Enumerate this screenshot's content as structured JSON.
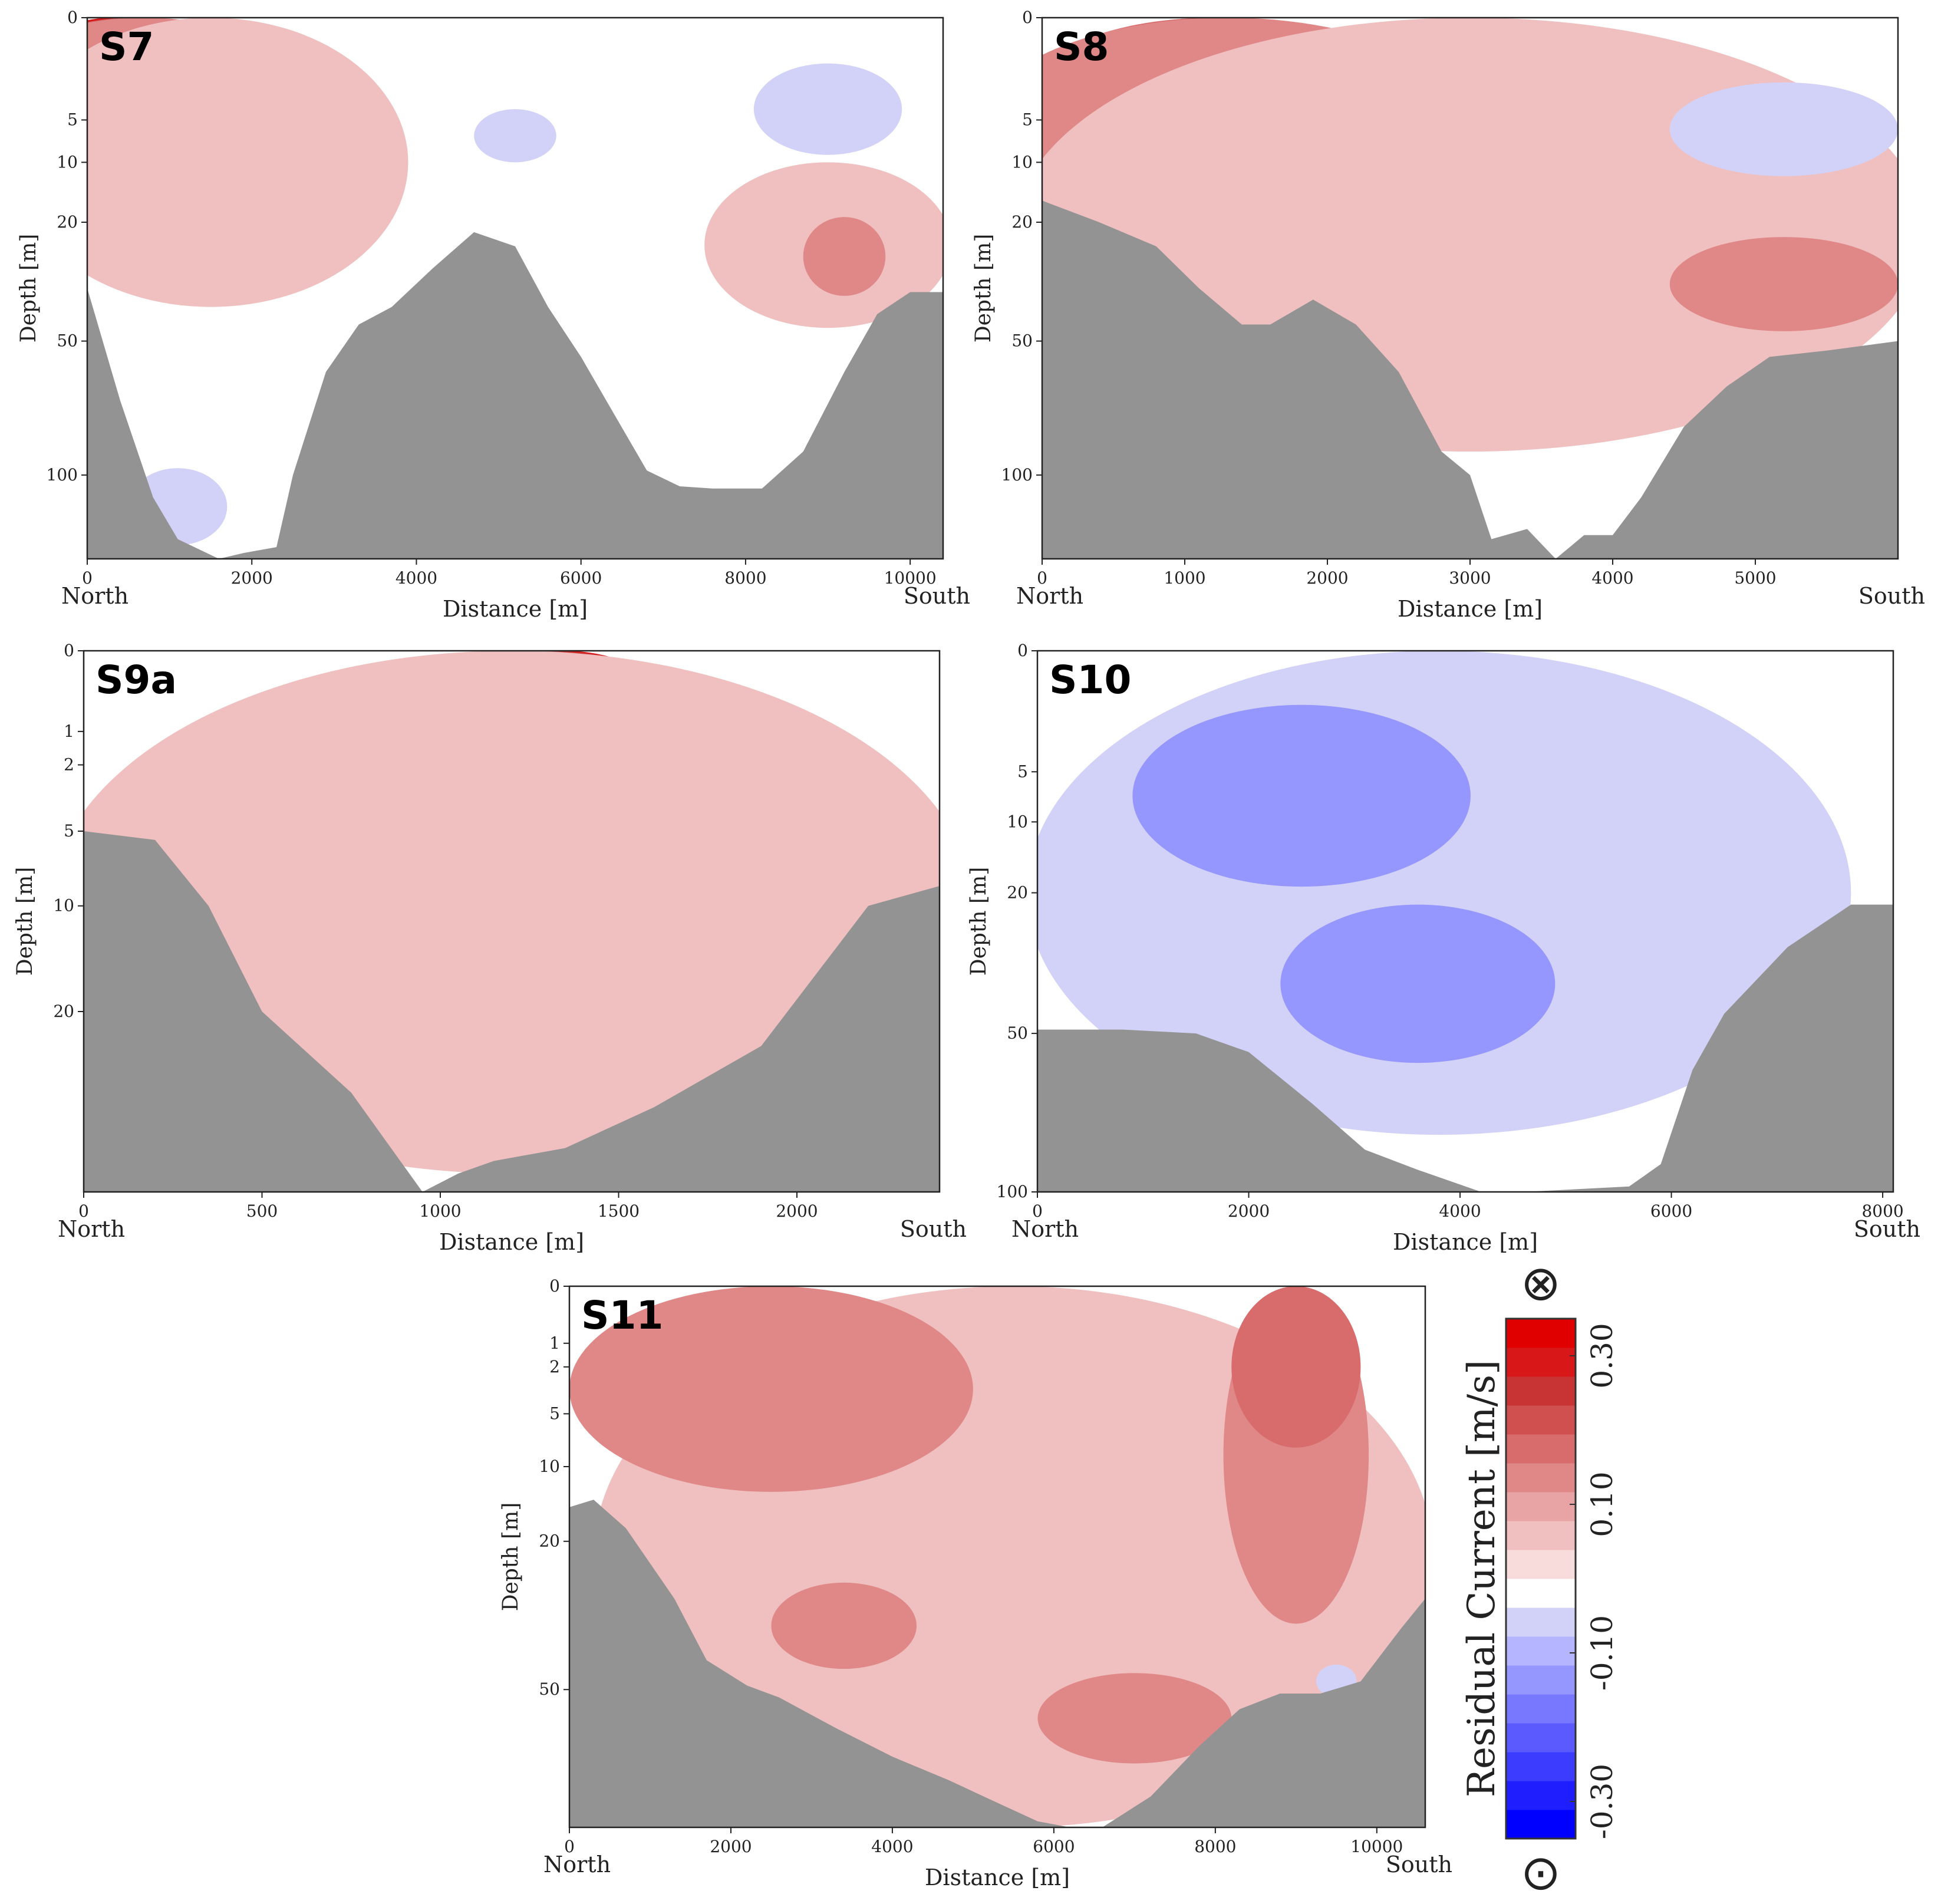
{
  "figure": {
    "colorbar": {
      "label": "Residual Current [m/s]",
      "ticks": [
        "0.30",
        "0.10",
        "-0.10",
        "-0.30"
      ],
      "tick_values": [
        0.3,
        0.1,
        -0.1,
        -0.3
      ],
      "vmin": -0.35,
      "vmax": 0.35,
      "top_symbol": "⊗",
      "bottom_symbol": "⊙",
      "colors": [
        "#0000ff",
        "#1e1eff",
        "#3c3cff",
        "#5a5aff",
        "#7878ff",
        "#9696ff",
        "#b4b4ff",
        "#d2d2f8",
        "#ffffff",
        "#f8dcdc",
        "#f0c0c0",
        "#e8a4a4",
        "#e08888",
        "#d86c6c",
        "#d05050",
        "#c83434",
        "#d81818",
        "#e00000"
      ]
    },
    "land_color": "#939393"
  },
  "chart_data": [
    {
      "id": "S7",
      "type": "heatmap",
      "title": "S7",
      "xlabel": "Distance [m]",
      "ylabel": "Depth [m]",
      "xlim": [
        0,
        10400
      ],
      "ylim": [
        140,
        0
      ],
      "x_ticks": [
        0,
        2000,
        4000,
        6000,
        8000,
        10000
      ],
      "x_tick_labels": [
        "0",
        "2000",
        "4000",
        "6000",
        "8000",
        "10000"
      ],
      "y_ticks": [
        0,
        5,
        10,
        20,
        50,
        100
      ],
      "y_tick_labels": [
        "0",
        "5",
        "10",
        "20",
        "50",
        "100"
      ],
      "left_label": "North",
      "right_label": "South",
      "bathymetry": [
        [
          0,
          35
        ],
        [
          400,
          70
        ],
        [
          800,
          110
        ],
        [
          1100,
          130
        ],
        [
          1600,
          140
        ],
        [
          1900,
          137
        ],
        [
          2300,
          134
        ],
        [
          2500,
          100
        ],
        [
          2900,
          60
        ],
        [
          3300,
          45
        ],
        [
          3700,
          40
        ],
        [
          4200,
          30
        ],
        [
          4700,
          22
        ],
        [
          5200,
          25
        ],
        [
          5600,
          40
        ],
        [
          6000,
          55
        ],
        [
          6400,
          75
        ],
        [
          6800,
          98
        ],
        [
          7200,
          105
        ],
        [
          7600,
          106
        ],
        [
          8200,
          106
        ],
        [
          8700,
          90
        ],
        [
          9200,
          60
        ],
        [
          9600,
          42
        ],
        [
          10000,
          36
        ],
        [
          10400,
          36
        ]
      ],
      "field": [
        {
          "value": 0.3,
          "x": 300,
          "z": 0,
          "rx": 900,
          "rz": 4
        },
        {
          "value": 0.24,
          "x": 500,
          "z": 0,
          "rx": 1400,
          "rz": 8
        },
        {
          "value": 0.18,
          "x": 600,
          "z": 2,
          "rx": 1900,
          "rz": 14
        },
        {
          "value": 0.12,
          "x": 700,
          "z": 4,
          "rx": 2300,
          "rz": 20
        },
        {
          "value": 0.06,
          "x": 1500,
          "z": 10,
          "rx": 2400,
          "rz": 30
        },
        {
          "value": 0.06,
          "x": 9000,
          "z": 28,
          "rx": 1500,
          "rz": 18
        },
        {
          "value": 0.12,
          "x": 9200,
          "z": 28,
          "rx": 500,
          "rz": 9
        },
        {
          "value": -0.06,
          "x": 1100,
          "z": 115,
          "rx": 600,
          "rz": 18
        },
        {
          "value": -0.06,
          "x": 9000,
          "z": 5,
          "rx": 900,
          "rz": 4
        },
        {
          "value": -0.06,
          "x": 5200,
          "z": 7,
          "rx": 500,
          "rz": 3
        }
      ]
    },
    {
      "id": "S8",
      "type": "heatmap",
      "title": "S8",
      "xlabel": "Distance [m]",
      "ylabel": "Depth [m]",
      "xlim": [
        0,
        6000
      ],
      "ylim": [
        140,
        0
      ],
      "x_ticks": [
        0,
        1000,
        2000,
        3000,
        4000,
        5000
      ],
      "x_tick_labels": [
        "0",
        "1000",
        "2000",
        "3000",
        "4000",
        "5000"
      ],
      "y_ticks": [
        0,
        5,
        10,
        20,
        50,
        100
      ],
      "y_tick_labels": [
        "0",
        "5",
        "10",
        "20",
        "50",
        "100"
      ],
      "left_label": "North",
      "right_label": "South",
      "bathymetry": [
        [
          0,
          16
        ],
        [
          400,
          20
        ],
        [
          800,
          25
        ],
        [
          1100,
          35
        ],
        [
          1400,
          45
        ],
        [
          1600,
          45
        ],
        [
          1900,
          38
        ],
        [
          2200,
          45
        ],
        [
          2500,
          60
        ],
        [
          2800,
          90
        ],
        [
          3000,
          100
        ],
        [
          3150,
          130
        ],
        [
          3400,
          125
        ],
        [
          3600,
          140
        ],
        [
          3800,
          128
        ],
        [
          4000,
          128
        ],
        [
          4200,
          110
        ],
        [
          4500,
          80
        ],
        [
          4800,
          65
        ],
        [
          5100,
          55
        ],
        [
          5500,
          53
        ],
        [
          6000,
          50
        ]
      ],
      "field": [
        {
          "value": 0.3,
          "x": 1300,
          "z": 0,
          "rx": 600,
          "rz": 4
        },
        {
          "value": 0.24,
          "x": 1200,
          "z": 0,
          "rx": 1000,
          "rz": 8
        },
        {
          "value": 0.18,
          "x": 1200,
          "z": 2,
          "rx": 1400,
          "rz": 14
        },
        {
          "value": 0.12,
          "x": 1300,
          "z": 6,
          "rx": 1800,
          "rz": 22
        },
        {
          "value": 0.06,
          "x": 3000,
          "z": 35,
          "rx": 3200,
          "rz": 55
        },
        {
          "value": 0.12,
          "x": 5200,
          "z": 35,
          "rx": 800,
          "rz": 12
        },
        {
          "value": -0.06,
          "x": 5200,
          "z": 7,
          "rx": 800,
          "rz": 5
        }
      ]
    },
    {
      "id": "S9a",
      "type": "heatmap",
      "title": "S9a",
      "xlabel": "Distance [m]",
      "ylabel": "Depth [m]",
      "xlim": [
        0,
        2400
      ],
      "ylim": [
        45,
        0
      ],
      "x_ticks": [
        0,
        500,
        1000,
        1500,
        2000
      ],
      "x_tick_labels": [
        "0",
        "500",
        "1000",
        "1500",
        "2000"
      ],
      "y_ticks": [
        0,
        1,
        2,
        5,
        10,
        20
      ],
      "y_tick_labels": [
        "0",
        "1",
        "2",
        "5",
        "10",
        "20"
      ],
      "left_label": "North",
      "right_label": "South",
      "bathymetry": [
        [
          0,
          5
        ],
        [
          200,
          5.5
        ],
        [
          350,
          10
        ],
        [
          500,
          20
        ],
        [
          750,
          30
        ],
        [
          950,
          45
        ],
        [
          1050,
          42
        ],
        [
          1150,
          40
        ],
        [
          1350,
          38
        ],
        [
          1600,
          32
        ],
        [
          1900,
          24
        ],
        [
          2200,
          10
        ],
        [
          2400,
          8.5
        ]
      ],
      "field": [
        {
          "value": 0.3,
          "x": 1350,
          "z": 0,
          "rx": 400,
          "rz": 9
        },
        {
          "value": 0.24,
          "x": 1300,
          "z": 0,
          "rx": 600,
          "rz": 13
        },
        {
          "value": 0.18,
          "x": 1250,
          "z": 0,
          "rx": 800,
          "rz": 20
        },
        {
          "value": 0.12,
          "x": 1200,
          "z": 0,
          "rx": 1000,
          "rz": 30
        },
        {
          "value": 0.06,
          "x": 1200,
          "z": 0,
          "rx": 1300,
          "rz": 42
        }
      ]
    },
    {
      "id": "S10",
      "type": "heatmap",
      "title": "S10",
      "xlabel": "Distance [m]",
      "ylabel": "Depth [m]",
      "xlim": [
        0,
        8100
      ],
      "ylim": [
        100,
        0
      ],
      "x_ticks": [
        0,
        2000,
        4000,
        6000,
        8000
      ],
      "x_tick_labels": [
        "0",
        "2000",
        "4000",
        "6000",
        "8000"
      ],
      "y_ticks": [
        0,
        5,
        10,
        20,
        50,
        100
      ],
      "y_tick_labels": [
        "0",
        "5",
        "10",
        "20",
        "50",
        "100"
      ],
      "left_label": "North",
      "right_label": "South",
      "bathymetry": [
        [
          0,
          49
        ],
        [
          800,
          49
        ],
        [
          1500,
          50
        ],
        [
          2000,
          55
        ],
        [
          2600,
          70
        ],
        [
          3100,
          85
        ],
        [
          3600,
          92
        ],
        [
          4200,
          100
        ],
        [
          4600,
          100
        ],
        [
          5600,
          98
        ],
        [
          5900,
          90
        ],
        [
          6200,
          60
        ],
        [
          6500,
          45
        ],
        [
          7100,
          30
        ],
        [
          7700,
          22
        ],
        [
          8100,
          22
        ]
      ],
      "field": [
        {
          "value": -0.06,
          "x": 3800,
          "z": 25,
          "rx": 3900,
          "rz": 55
        },
        {
          "value": -0.12,
          "x": 2500,
          "z": 10,
          "rx": 1600,
          "rz": 9
        },
        {
          "value": -0.12,
          "x": 3600,
          "z": 40,
          "rx": 1300,
          "rz": 18
        }
      ]
    },
    {
      "id": "S11",
      "type": "heatmap",
      "title": "S11",
      "xlabel": "Distance [m]",
      "ylabel": "Depth [m]",
      "xlim": [
        0,
        10600
      ],
      "ylim": [
        90,
        0
      ],
      "x_ticks": [
        0,
        2000,
        4000,
        6000,
        8000,
        10000
      ],
      "x_tick_labels": [
        "0",
        "2000",
        "4000",
        "6000",
        "8000",
        "10000"
      ],
      "y_ticks": [
        0,
        1,
        2,
        5,
        10,
        20,
        50
      ],
      "y_tick_labels": [
        "0",
        "1",
        "2",
        "5",
        "10",
        "20",
        "50"
      ],
      "left_label": "North",
      "right_label": "South",
      "bathymetry": [
        [
          0,
          15
        ],
        [
          300,
          14
        ],
        [
          700,
          18
        ],
        [
          1300,
          30
        ],
        [
          1700,
          43
        ],
        [
          2200,
          49
        ],
        [
          2600,
          52
        ],
        [
          3300,
          60
        ],
        [
          4000,
          68
        ],
        [
          4700,
          75
        ],
        [
          5300,
          82
        ],
        [
          5800,
          88
        ],
        [
          6200,
          90
        ],
        [
          6600,
          90
        ],
        [
          7200,
          80
        ],
        [
          7800,
          65
        ],
        [
          8300,
          55
        ],
        [
          8800,
          51
        ],
        [
          9300,
          51
        ],
        [
          9800,
          48
        ],
        [
          10300,
          36
        ],
        [
          10600,
          30
        ]
      ],
      "field": [
        {
          "value": 0.06,
          "x": 5500,
          "z": 30,
          "rx": 5200,
          "rz": 60
        },
        {
          "value": 0.12,
          "x": 2500,
          "z": 3,
          "rx": 2500,
          "rz": 10
        },
        {
          "value": 0.12,
          "x": 9000,
          "z": 10,
          "rx": 900,
          "rz": 25
        },
        {
          "value": 0.12,
          "x": 3400,
          "z": 36,
          "rx": 900,
          "rz": 9
        },
        {
          "value": 0.12,
          "x": 7000,
          "z": 58,
          "rx": 1200,
          "rz": 12
        },
        {
          "value": 0.18,
          "x": 9000,
          "z": 2,
          "rx": 800,
          "rz": 6
        },
        {
          "value": -0.06,
          "x": 9500,
          "z": 48,
          "rx": 250,
          "rz": 4
        }
      ]
    }
  ]
}
